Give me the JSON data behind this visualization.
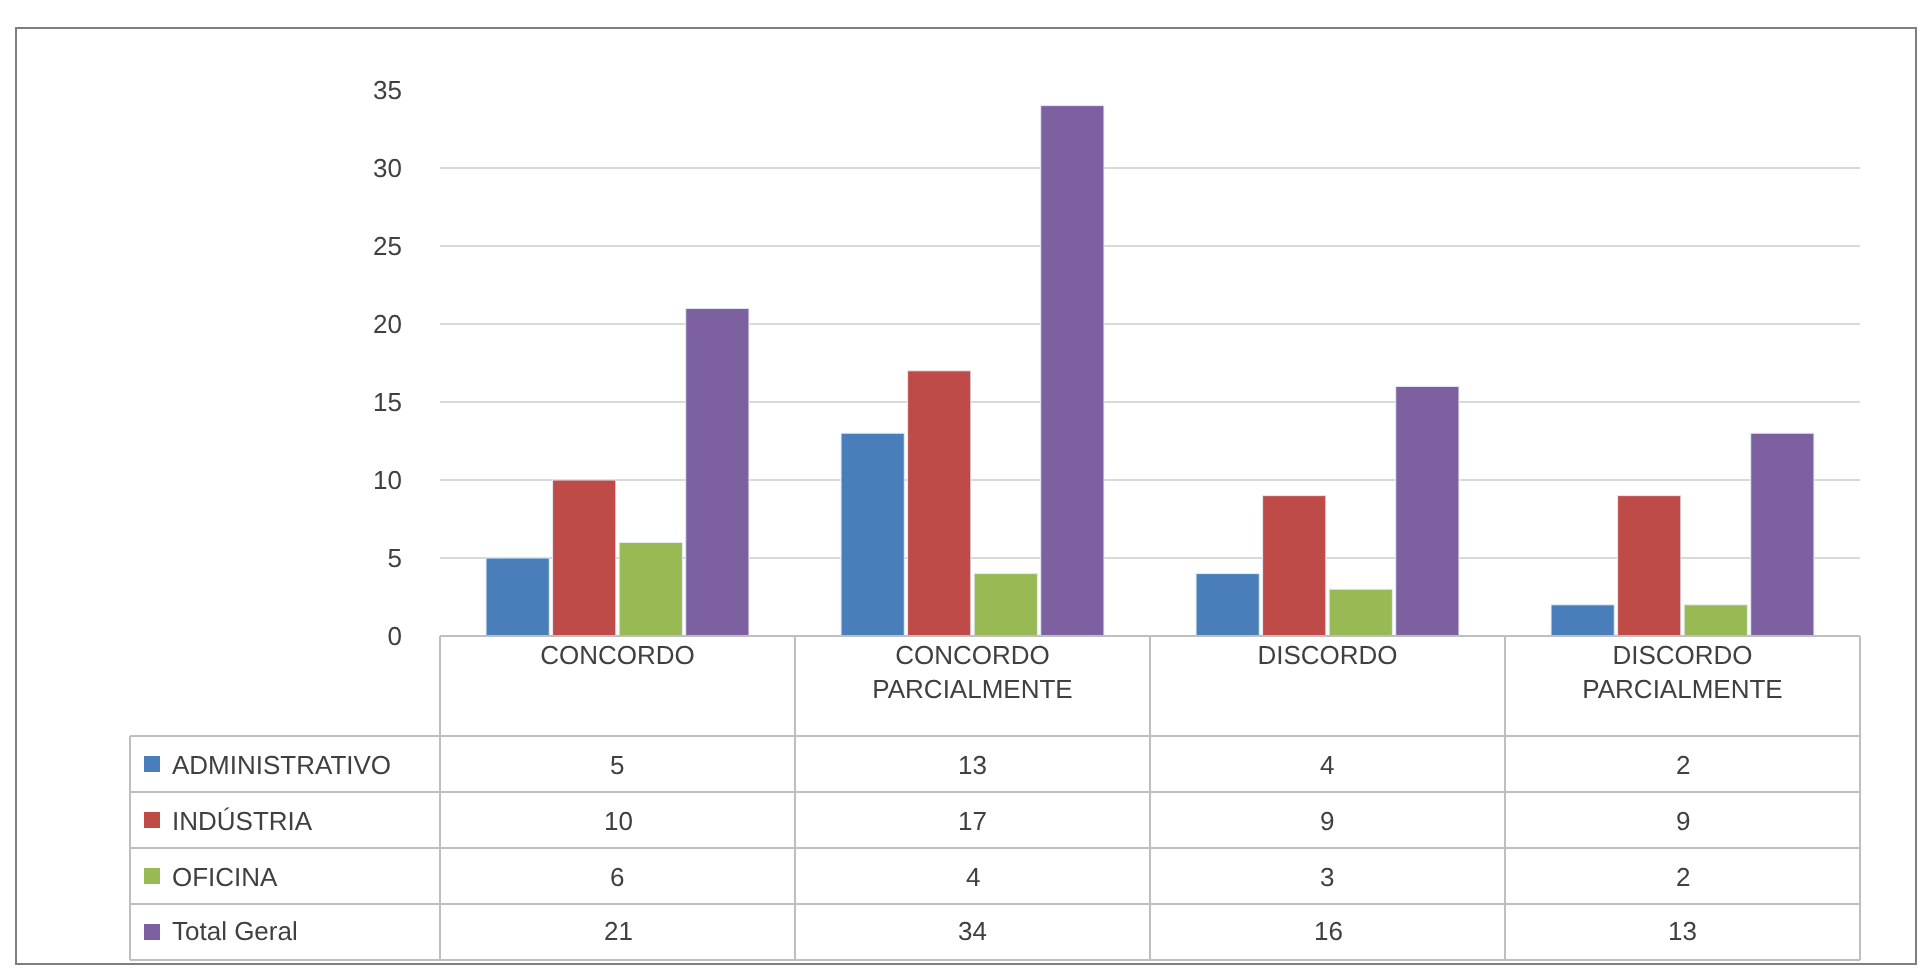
{
  "chart_data": {
    "type": "bar",
    "categories": [
      "CONCORDO",
      "CONCORDO PARCIALMENTE",
      "DISCORDO",
      "DISCORDO PARCIALMENTE"
    ],
    "series": [
      {
        "name": "ADMINISTRATIVO",
        "color": "#4a7ebb",
        "values": [
          5,
          13,
          4,
          2
        ]
      },
      {
        "name": "INDÚSTRIA",
        "color": "#be4b48",
        "values": [
          10,
          17,
          9,
          9
        ]
      },
      {
        "name": "OFICINA",
        "color": "#98b954",
        "values": [
          6,
          4,
          3,
          2
        ]
      },
      {
        "name": "Total Geral",
        "color": "#7d60a0",
        "values": [
          21,
          34,
          16,
          13
        ]
      }
    ],
    "ylim": [
      0,
      35
    ],
    "yticks": [
      0,
      5,
      10,
      15,
      20,
      25,
      30,
      35
    ],
    "grid": "y",
    "legend": "bottom",
    "data_labels": true
  }
}
